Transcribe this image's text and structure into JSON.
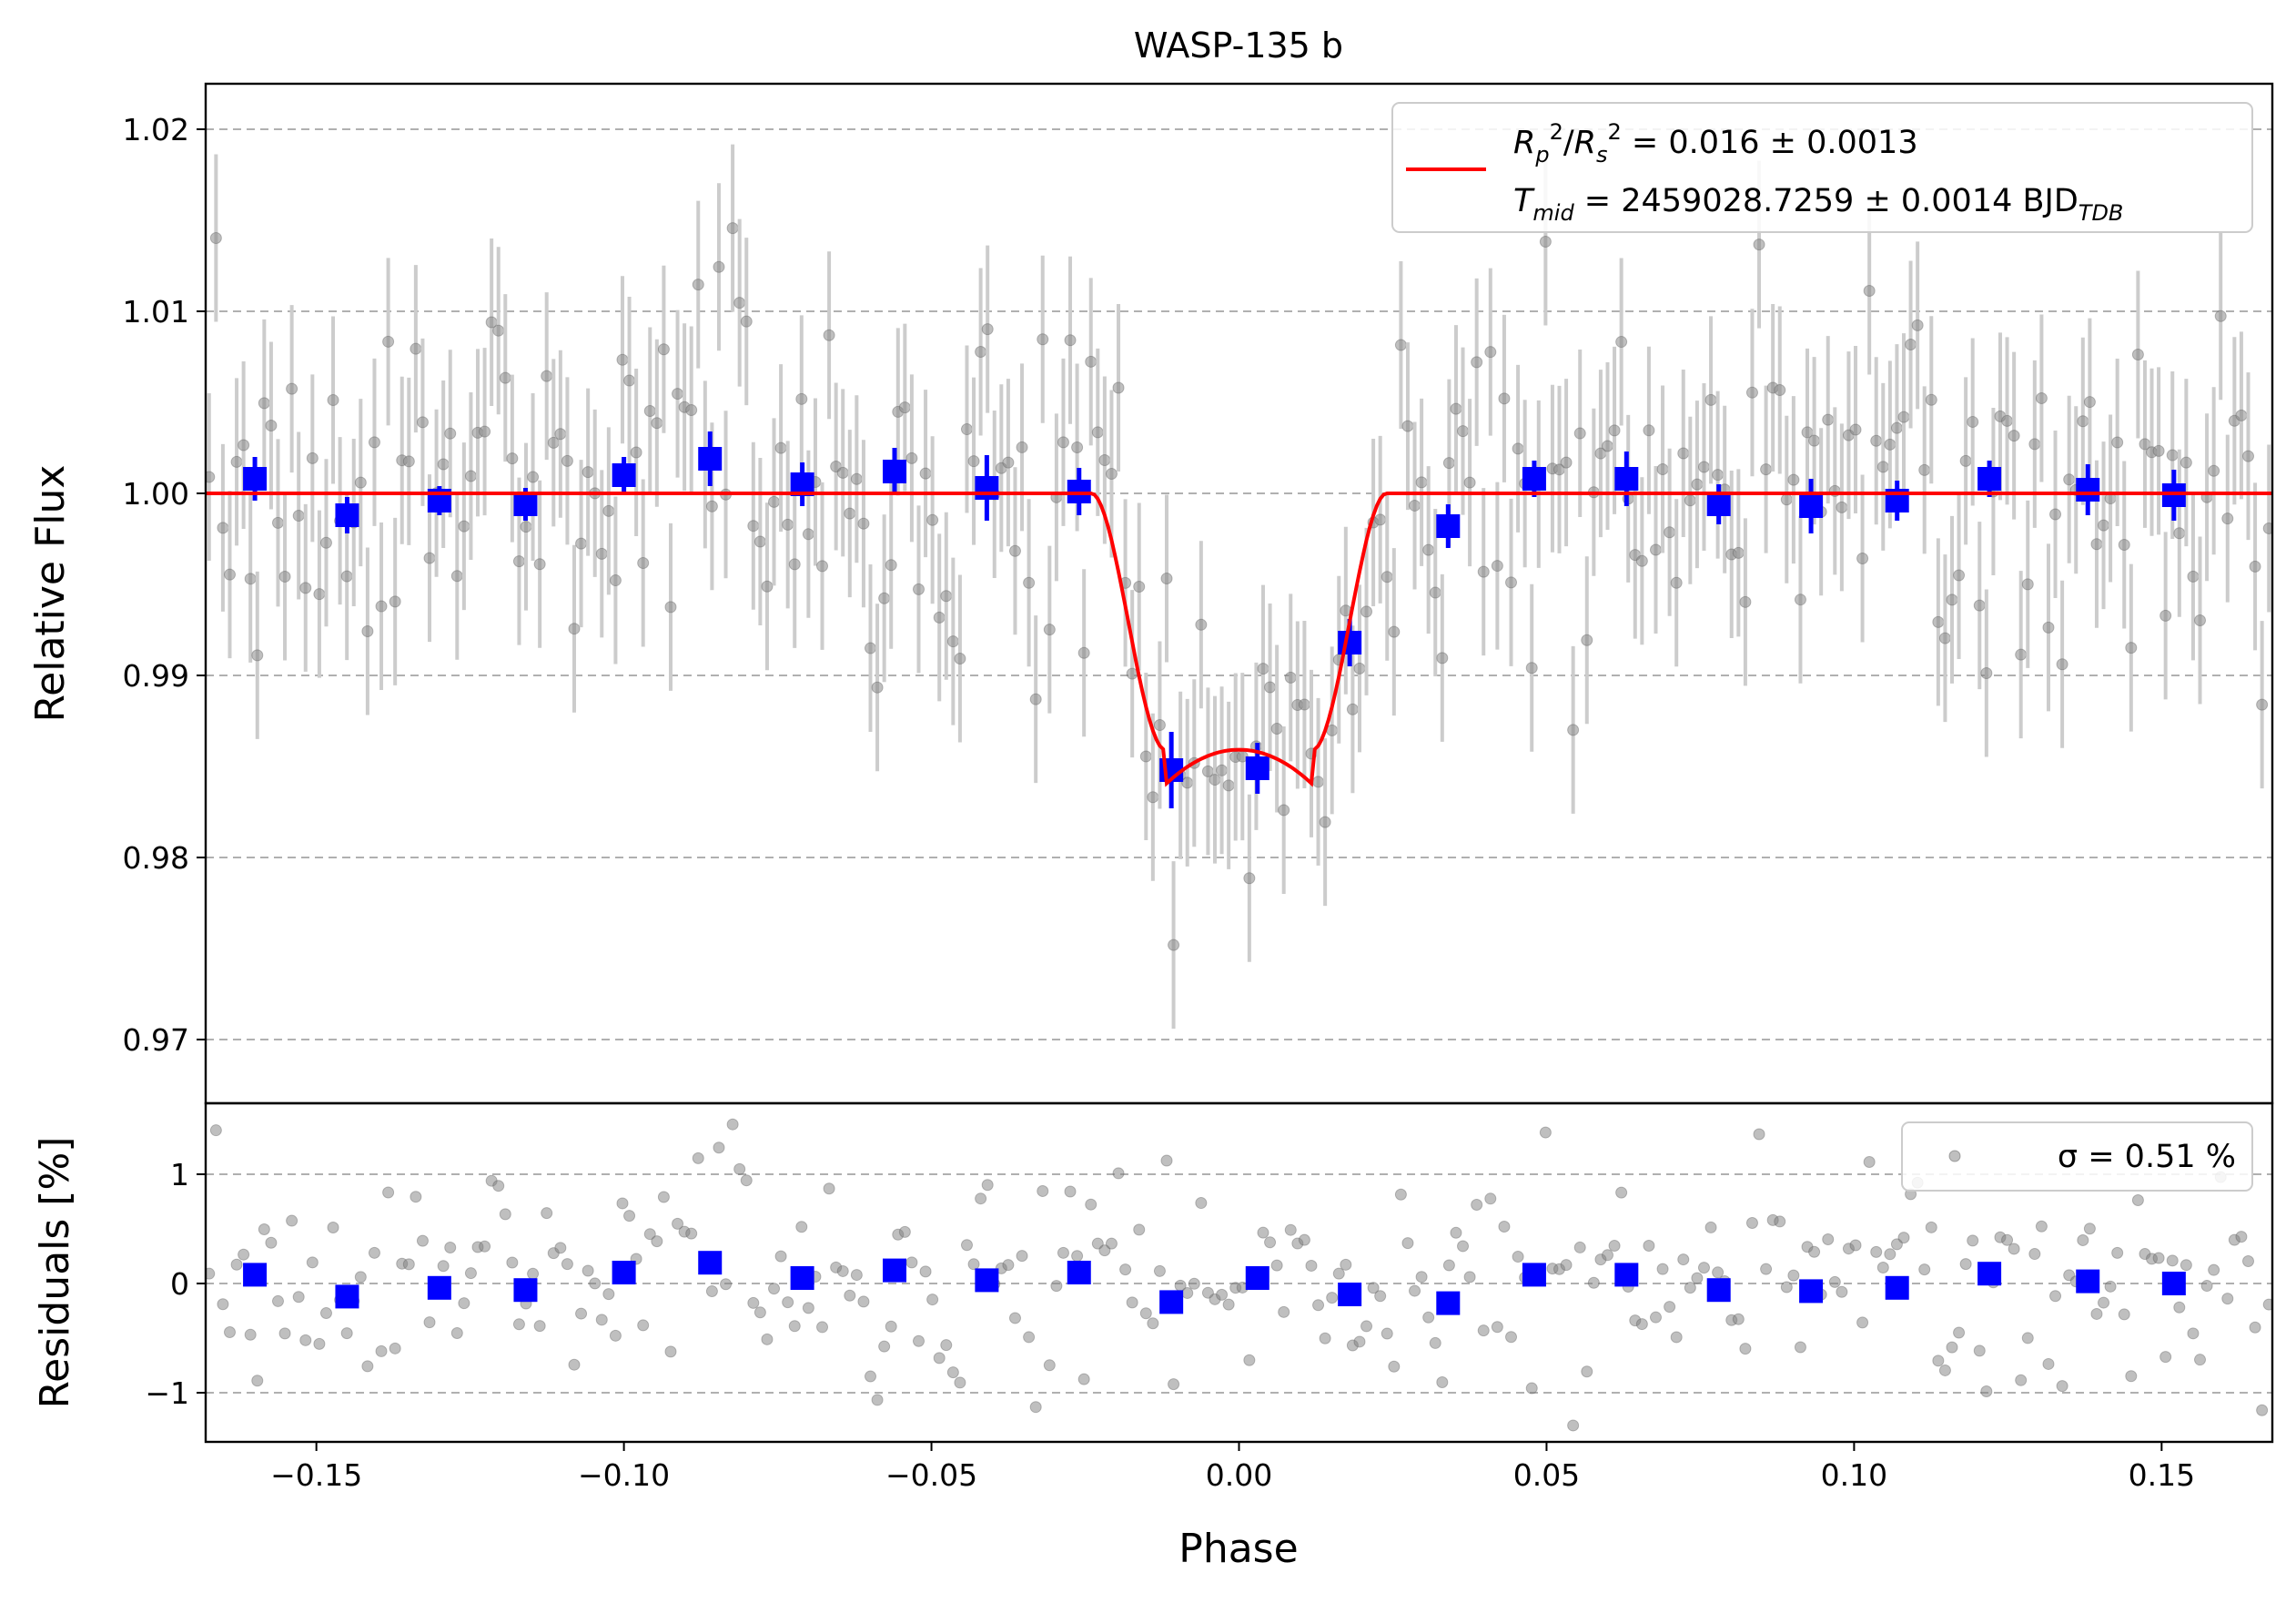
{
  "chart_data": [
    {
      "type": "scatter",
      "title": "WASP-135 b",
      "xlabel": "Phase",
      "ylabel": "Relative Flux",
      "xlim": [
        -0.168,
        0.168
      ],
      "ylim": [
        0.9665,
        1.0225
      ],
      "grid": "horizontal dashed",
      "xticks": [
        "−0.15",
        "−0.10",
        "−0.05",
        "0.00",
        "0.05",
        "0.10",
        "0.15"
      ],
      "xtick_values": [
        -0.15,
        -0.1,
        -0.05,
        0.0,
        0.05,
        0.1,
        0.15
      ],
      "yticks": [
        "0.97",
        "0.98",
        "0.99",
        "1.00",
        "1.01",
        "1.02"
      ],
      "ytick_values": [
        0.97,
        0.98,
        0.99,
        1.0,
        1.01,
        1.02
      ],
      "legend": {
        "position": "top-right",
        "model_line": "R_p^2/R_s^2 = 0.016 ± 0.0013",
        "model_line2": "T_mid = 2459028.7259 ± 0.0014 BJD_TDB"
      },
      "colors": {
        "raw": "#808080",
        "raw_err": "#cccccc",
        "binned": "#0000ff",
        "model": "#ff0000"
      },
      "model": {
        "depth": 0.016,
        "t14_half": 0.024,
        "ingress": 0.012,
        "baseline": 1.0
      },
      "raw_points": {
        "count": 300,
        "x_range": [
          -0.168,
          0.168
        ],
        "scatter_sigma": 0.0051,
        "error_bar": 0.0046
      },
      "binned_series": {
        "name": "binned",
        "x": [
          -0.16,
          -0.145,
          -0.13,
          -0.116,
          -0.1,
          -0.086,
          -0.071,
          -0.056,
          -0.041,
          -0.026,
          -0.011,
          0.003,
          0.018,
          0.034,
          0.048,
          0.063,
          0.078,
          0.093,
          0.107,
          0.122,
          0.138,
          0.152
        ],
        "y": [
          1.0008,
          0.9988,
          0.9996,
          0.9994,
          1.001,
          1.0019,
          1.0005,
          1.0012,
          1.0003,
          1.0001,
          0.9848,
          0.9849,
          0.9918,
          0.9982,
          1.0008,
          1.0008,
          0.9994,
          0.9993,
          0.9996,
          1.0008,
          1.0002,
          0.9999
        ],
        "yerr": [
          0.0012,
          0.001,
          0.0008,
          0.0009,
          0.001,
          0.0015,
          0.0012,
          0.0013,
          0.0018,
          0.0013,
          0.0021,
          0.0014,
          0.0013,
          0.0012,
          0.001,
          0.0015,
          0.0011,
          0.0015,
          0.0011,
          0.001,
          0.0014,
          0.0014
        ]
      }
    },
    {
      "type": "scatter",
      "xlabel": "Phase",
      "ylabel": "Residuals [%]",
      "xlim": [
        -0.168,
        0.168
      ],
      "ylim": [
        -1.45,
        1.65
      ],
      "yticks": [
        "−1",
        "0",
        "1"
      ],
      "ytick_values": [
        -1,
        0,
        1
      ],
      "legend": {
        "position": "top-right",
        "label": "σ = 0.51 %"
      },
      "binned_series": {
        "name": "binned residuals",
        "x": [
          -0.16,
          -0.145,
          -0.13,
          -0.116,
          -0.1,
          -0.086,
          -0.071,
          -0.056,
          -0.041,
          -0.026,
          -0.011,
          0.003,
          0.018,
          0.034,
          0.048,
          0.063,
          0.078,
          0.093,
          0.107,
          0.122,
          0.138,
          0.152
        ],
        "y": [
          0.08,
          -0.12,
          -0.04,
          -0.06,
          0.1,
          0.19,
          0.05,
          0.12,
          0.03,
          0.1,
          -0.17,
          0.05,
          -0.1,
          -0.18,
          0.08,
          0.08,
          -0.06,
          -0.07,
          -0.04,
          0.09,
          0.02,
          0.0
        ]
      }
    }
  ]
}
